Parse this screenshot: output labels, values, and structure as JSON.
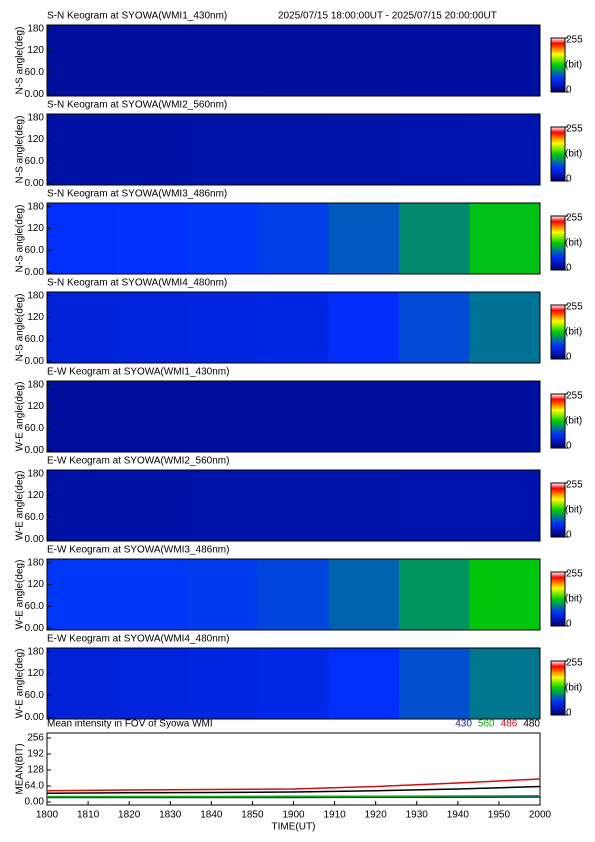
{
  "chart_data": [
    {
      "type": "heatmap",
      "title": "S-N Keogram at SYOWA(WMI1_430nm)",
      "time_range": "2025/07/15 18:00:00UT - 2025/07/15 20:00:00UT",
      "ylabel": "N-S angle(deg)",
      "ylim": [
        -5,
        190
      ],
      "yticks": [
        {
          "value": 0,
          "label": "0.00"
        },
        {
          "value": 60,
          "label": "60.0"
        },
        120,
        180
      ],
      "values": [
        20,
        20,
        20,
        21,
        21,
        22,
        22
      ],
      "clim": [
        0,
        255
      ],
      "cticks": [
        0,
        255
      ],
      "clabel": "(bit)"
    },
    {
      "type": "heatmap",
      "title": "S-N Keogram at SYOWA(WMI2_560nm)",
      "ylabel": "N-S angle(deg)",
      "ylim": [
        -5,
        190
      ],
      "yticks": [
        {
          "value": 0,
          "label": "0.00"
        },
        {
          "value": 60,
          "label": "60.0"
        },
        120,
        180
      ],
      "values": [
        24,
        24,
        25,
        25,
        26,
        27,
        28
      ],
      "clim": [
        0,
        255
      ],
      "cticks": [
        0,
        255
      ],
      "clabel": "(bit)"
    },
    {
      "type": "heatmap",
      "title": "S-N Keogram at SYOWA(WMI3_486nm)",
      "ylabel": "N-S angle(deg)",
      "ylim": [
        -5,
        190
      ],
      "yticks": [
        {
          "value": 0,
          "label": "0.00"
        },
        {
          "value": 60,
          "label": "60.0"
        },
        120,
        180
      ],
      "values": [
        62,
        64,
        66,
        70,
        80,
        100,
        122
      ],
      "clim": [
        0,
        255
      ],
      "cticks": [
        0,
        255
      ],
      "clabel": "(bit)"
    },
    {
      "type": "heatmap",
      "title": "S-N Keogram at SYOWA(WMI4_480nm)",
      "ylabel": "N-S angle(deg)",
      "ylim": [
        -5,
        190
      ],
      "yticks": [
        {
          "value": 0,
          "label": "0.00"
        },
        {
          "value": 60,
          "label": "60.0"
        },
        120,
        180
      ],
      "values": [
        46,
        48,
        50,
        52,
        60,
        74,
        90
      ],
      "clim": [
        0,
        255
      ],
      "cticks": [
        0,
        255
      ],
      "clabel": "(bit)"
    },
    {
      "type": "heatmap",
      "title": "E-W Keogram at SYOWA(WMI1_430nm)",
      "ylabel": "W-E angle(deg)",
      "ylim": [
        -5,
        190
      ],
      "yticks": [
        {
          "value": 0,
          "label": "0.00"
        },
        {
          "value": 60,
          "label": "60.0"
        },
        120,
        180
      ],
      "values": [
        20,
        20,
        21,
        21,
        21,
        22,
        22
      ],
      "clim": [
        0,
        255
      ],
      "cticks": [
        0,
        255
      ],
      "clabel": "(bit)"
    },
    {
      "type": "heatmap",
      "title": "E-W Keogram at SYOWA(WMI2_560nm)",
      "ylabel": "W-E angle(deg)",
      "ylim": [
        -5,
        190
      ],
      "yticks": [
        {
          "value": 0,
          "label": "0.00"
        },
        {
          "value": 60,
          "label": "60.0"
        },
        120,
        180
      ],
      "values": [
        24,
        24,
        25,
        25,
        26,
        27,
        27
      ],
      "clim": [
        0,
        255
      ],
      "cticks": [
        0,
        255
      ],
      "clabel": "(bit)"
    },
    {
      "type": "heatmap",
      "title": "E-W Keogram at SYOWA(WMI3_486nm)",
      "ylabel": "W-E angle(deg)",
      "ylim": [
        -5,
        190
      ],
      "yticks": [
        {
          "value": 0,
          "label": "0.00"
        },
        {
          "value": 60,
          "label": "60.0"
        },
        120,
        180
      ],
      "values": [
        66,
        66,
        68,
        72,
        84,
        104,
        124
      ],
      "clim": [
        0,
        255
      ],
      "cticks": [
        0,
        255
      ],
      "clabel": "(bit)"
    },
    {
      "type": "heatmap",
      "title": "E-W Keogram at SYOWA(WMI4_480nm)",
      "ylabel": "W-E angle(deg)",
      "ylim": [
        -5,
        190
      ],
      "yticks": [
        {
          "value": 0,
          "label": "0.00"
        },
        {
          "value": 60,
          "label": "60.0"
        },
        120,
        180
      ],
      "values": [
        46,
        48,
        50,
        53,
        62,
        76,
        92
      ],
      "clim": [
        0,
        255
      ],
      "cticks": [
        0,
        255
      ],
      "clabel": "(bit)"
    },
    {
      "type": "line",
      "title": "Mean intensity in FOV of Syowa WMI",
      "ylabel": "MEAN(BIT)",
      "xlabel": "TIME(UT)",
      "x": [
        0,
        20,
        40,
        60,
        80,
        100,
        120
      ],
      "xlim": [
        0,
        120
      ],
      "xticks": [
        {
          "value": 0,
          "label": "1800"
        },
        {
          "value": 10,
          "label": "1810"
        },
        {
          "value": 20,
          "label": "1820"
        },
        {
          "value": 30,
          "label": "1830"
        },
        {
          "value": 40,
          "label": "1840"
        },
        {
          "value": 50,
          "label": "1850"
        },
        {
          "value": 60,
          "label": "1900"
        },
        {
          "value": 70,
          "label": "1910"
        },
        {
          "value": 80,
          "label": "1920"
        },
        {
          "value": 90,
          "label": "1930"
        },
        {
          "value": 100,
          "label": "1940"
        },
        {
          "value": 110,
          "label": "1950"
        },
        {
          "value": 120,
          "label": "2000"
        }
      ],
      "ylim": [
        -12,
        276
      ],
      "yticks": [
        {
          "value": 0,
          "label": "0.00"
        },
        {
          "value": 64,
          "label": "64.0"
        },
        128,
        192,
        256
      ],
      "series": [
        {
          "name": "430",
          "color": "#1a1aa0",
          "values": [
            18,
            18,
            18,
            18,
            19,
            19,
            20
          ]
        },
        {
          "name": "560",
          "color": "#10b010",
          "values": [
            22,
            22,
            22,
            23,
            23,
            24,
            25
          ]
        },
        {
          "name": "486",
          "color": "#d01010",
          "values": [
            45,
            48,
            50,
            52,
            62,
            76,
            92
          ]
        },
        {
          "name": "480",
          "color": "#000000",
          "values": [
            35,
            37,
            38,
            40,
            45,
            52,
            62
          ]
        }
      ]
    }
  ]
}
